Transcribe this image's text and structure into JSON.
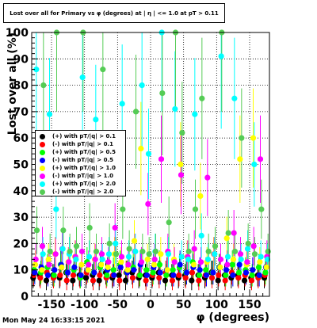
{
  "chart_data": {
    "type": "scatter",
    "title": "Lost over all for Primary vs φ (degrees) at | η | <= 1.0 at pT > 0.11",
    "xlabel": "φ (degrees)",
    "ylabel": "Lost over all (%)",
    "xlim": [
      -180,
      180
    ],
    "ylim": [
      0,
      100
    ],
    "x_ticks": [
      "-150",
      "-100",
      "-50",
      "0",
      "50",
      "100",
      "150"
    ],
    "y_ticks": [
      "0",
      "10",
      "20",
      "30",
      "40",
      "50",
      "60",
      "70",
      "80",
      "90",
      "100"
    ],
    "grid": true,
    "legend_position": "left-middle",
    "footer": "Mon May 24 16:33:15 2021",
    "series": [
      {
        "name": "(+) with pT/|q| > 0.1",
        "color": "#000000",
        "x": [
          -175,
          -165,
          -155,
          -145,
          -135,
          -125,
          -115,
          -105,
          -95,
          -85,
          -75,
          -65,
          -55,
          -45,
          -35,
          -25,
          -15,
          -5,
          5,
          15,
          25,
          35,
          45,
          55,
          65,
          75,
          85,
          95,
          105,
          115,
          125,
          135,
          145,
          155,
          165,
          175
        ],
        "y": [
          7,
          8,
          6,
          8,
          7,
          9,
          6,
          8,
          7,
          8,
          6,
          9,
          7,
          8,
          6,
          9,
          7,
          8,
          7,
          9,
          6,
          8,
          7,
          8,
          6,
          8,
          7,
          9,
          6,
          8,
          7,
          8,
          6,
          7,
          8,
          7
        ]
      },
      {
        "name": "(-) with pT/|q| > 0.1",
        "color": "#ff0000",
        "x": [
          -175,
          -165,
          -155,
          -145,
          -135,
          -125,
          -115,
          -105,
          -95,
          -85,
          -75,
          -65,
          -55,
          -45,
          -35,
          -25,
          -15,
          -5,
          5,
          15,
          25,
          35,
          45,
          55,
          65,
          75,
          85,
          95,
          105,
          115,
          125,
          135,
          145,
          155,
          165,
          175
        ],
        "y": [
          8,
          7,
          9,
          7,
          8,
          6,
          8,
          7,
          9,
          6,
          8,
          7,
          8,
          6,
          9,
          7,
          8,
          6,
          8,
          7,
          9,
          6,
          8,
          7,
          9,
          6,
          8,
          7,
          8,
          6,
          9,
          7,
          8,
          6,
          7,
          8
        ]
      },
      {
        "name": "(+) with pT/|q| > 0.5",
        "color": "#00ff00",
        "x": [
          -175,
          -165,
          -155,
          -145,
          -135,
          -125,
          -115,
          -105,
          -95,
          -85,
          -75,
          -65,
          -55,
          -45,
          -35,
          -25,
          -15,
          -5,
          5,
          15,
          25,
          35,
          45,
          55,
          65,
          75,
          85,
          95,
          105,
          115,
          125,
          135,
          145,
          155,
          165,
          175
        ],
        "y": [
          10,
          9,
          11,
          8,
          12,
          9,
          10,
          7,
          13,
          9,
          11,
          8,
          10,
          12,
          9,
          11,
          8,
          10,
          9,
          12,
          8,
          10,
          11,
          9,
          13,
          8,
          10,
          9,
          11,
          8,
          12,
          9,
          10,
          8,
          11,
          9
        ]
      },
      {
        "name": "(-) with pT/|q| > 0.5",
        "color": "#0000ff",
        "x": [
          -175,
          -165,
          -155,
          -145,
          -135,
          -125,
          -115,
          -105,
          -95,
          -85,
          -75,
          -65,
          -55,
          -45,
          -35,
          -25,
          -15,
          -5,
          5,
          15,
          25,
          35,
          45,
          55,
          65,
          75,
          85,
          95,
          105,
          115,
          125,
          135,
          145,
          155,
          165,
          175
        ],
        "y": [
          9,
          11,
          8,
          10,
          12,
          9,
          11,
          8,
          10,
          9,
          12,
          10,
          8,
          11,
          9,
          10,
          12,
          8,
          11,
          9,
          10,
          8,
          12,
          9,
          11,
          10,
          8,
          9,
          11,
          10,
          8,
          12,
          9,
          10,
          8,
          11
        ]
      },
      {
        "name": "(+) with pT/|q| > 1.0",
        "color": "#ffff00",
        "x": [
          -175,
          -165,
          -155,
          -145,
          -135,
          -125,
          -115,
          -105,
          -95,
          -85,
          -75,
          -65,
          -55,
          -45,
          -35,
          -25,
          -15,
          -5,
          5,
          15,
          25,
          35,
          45,
          55,
          65,
          75,
          85,
          95,
          105,
          115,
          125,
          135,
          145,
          155,
          165,
          175
        ],
        "y": [
          12,
          10,
          14,
          16,
          11,
          13,
          15,
          12,
          10,
          14,
          12,
          11,
          16,
          13,
          10,
          21,
          56,
          14,
          12,
          16,
          10,
          14,
          50,
          15,
          12,
          38,
          13,
          16,
          11,
          22,
          14,
          52,
          12,
          60,
          13,
          11
        ]
      },
      {
        "name": "(-) with pT/|q| > 1.0",
        "color": "#ff00ff",
        "x": [
          -175,
          -165,
          -155,
          -145,
          -135,
          -125,
          -115,
          -105,
          -95,
          -85,
          -75,
          -65,
          -55,
          -45,
          -35,
          -25,
          -15,
          -5,
          5,
          15,
          25,
          35,
          45,
          55,
          65,
          75,
          85,
          95,
          105,
          115,
          125,
          135,
          145,
          155,
          165,
          175
        ],
        "y": [
          14,
          19,
          12,
          16,
          18,
          13,
          15,
          17,
          12,
          14,
          16,
          13,
          26,
          15,
          12,
          17,
          13,
          35,
          14,
          52,
          17,
          13,
          46,
          15,
          18,
          13,
          45,
          16,
          14,
          12,
          24,
          16,
          13,
          19,
          52,
          15
        ]
      },
      {
        "name": "(+) with pT/|q| > 2.0",
        "color": "#00ffff",
        "x": [
          -175,
          -165,
          -155,
          -145,
          -135,
          -125,
          -115,
          -105,
          -95,
          -85,
          -75,
          -65,
          -55,
          -45,
          -35,
          -25,
          -15,
          -5,
          5,
          15,
          25,
          35,
          45,
          55,
          65,
          75,
          85,
          95,
          105,
          115,
          125,
          135,
          145,
          155,
          165,
          175
        ],
        "y": [
          86,
          16,
          69,
          33,
          18,
          16,
          14,
          83,
          15,
          67,
          14,
          16,
          20,
          73,
          15,
          17,
          80,
          54,
          17,
          100,
          16,
          71,
          15,
          14,
          69,
          23,
          14,
          16,
          91,
          15,
          75,
          14,
          18,
          50,
          15,
          14
        ]
      },
      {
        "name": "(-) with pT/|q| > 2.0",
        "color": "#55cc55",
        "x": [
          -175,
          -165,
          -155,
          -145,
          -135,
          -125,
          -115,
          -105,
          -95,
          -85,
          -75,
          -65,
          -55,
          -45,
          -35,
          -25,
          -15,
          -5,
          5,
          15,
          25,
          35,
          45,
          55,
          65,
          75,
          85,
          95,
          105,
          115,
          125,
          135,
          145,
          155,
          165,
          175
        ],
        "y": [
          25,
          80,
          17,
          100,
          25,
          17,
          19,
          100,
          26,
          17,
          86,
          20,
          16,
          33,
          18,
          70,
          17,
          16,
          17,
          77,
          28,
          100,
          62,
          17,
          33,
          75,
          17,
          19,
          100,
          24,
          17,
          60,
          20,
          16,
          33,
          17
        ]
      }
    ]
  }
}
